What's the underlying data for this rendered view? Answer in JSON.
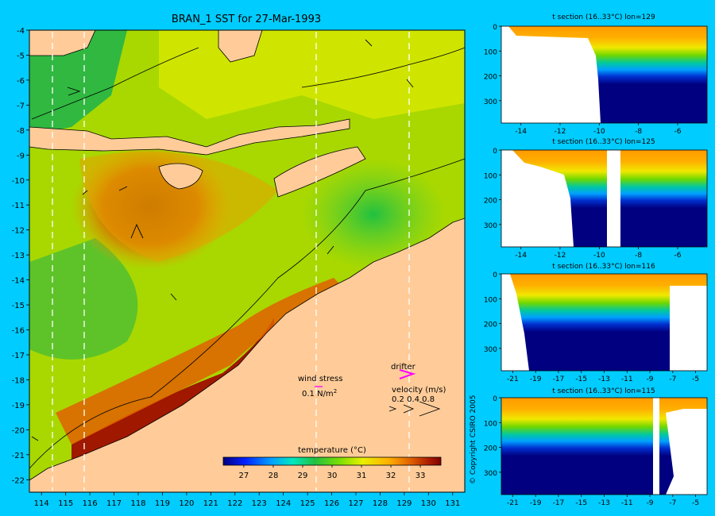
{
  "main_map": {
    "title": "BRAN_1 SST for 27-Mar-1993",
    "x_ticks": [
      "114",
      "115",
      "116",
      "117",
      "118",
      "119",
      "120",
      "121",
      "122",
      "123",
      "124",
      "125",
      "126",
      "127",
      "128",
      "129",
      "130",
      "131"
    ],
    "y_ticks": [
      "-4",
      "-5",
      "-6",
      "-7",
      "-8",
      "-9",
      "-10",
      "-11",
      "-12",
      "-13",
      "-14",
      "-15",
      "-16",
      "-17",
      "-18",
      "-19",
      "-20",
      "-21",
      "-22"
    ],
    "section_lons": [
      114.5,
      115.8,
      125.4,
      129.2
    ],
    "wind_legend": {
      "label": "wind stress",
      "scale": "0.1 N/m",
      "superscript": "2"
    },
    "drifter_label": "drifter",
    "velocity": {
      "label": "velocity (m/s)",
      "scale": "0.2 0.4 0.8"
    },
    "colorbar": {
      "label": "temperature (°C)",
      "ticks": [
        "27",
        "28",
        "29",
        "30",
        "31",
        "32",
        "33"
      ],
      "range": [
        26.3,
        33.7
      ],
      "colors": [
        "#000080",
        "#0020ff",
        "#00a0ff",
        "#00e8c0",
        "#20c040",
        "#80e000",
        "#e8f000",
        "#ffb000",
        "#e06000",
        "#b02000",
        "#800000"
      ]
    }
  },
  "sections": [
    {
      "title": "t section (16..33°C) lon=129",
      "x_ticks": [
        "-14",
        "-12",
        "-10",
        "-8",
        "-6"
      ],
      "x_range": [
        -15,
        -4.5
      ],
      "y_ticks": [
        "0",
        "100",
        "200",
        "300"
      ],
      "y_range": [
        0,
        390
      ]
    },
    {
      "title": "t section (16..33°C) lon=125",
      "x_ticks": [
        "-14",
        "-12",
        "-10",
        "-8",
        "-6"
      ],
      "x_range": [
        -15,
        -4.5
      ],
      "y_ticks": [
        "0",
        "100",
        "200",
        "300"
      ],
      "y_range": [
        0,
        390
      ]
    },
    {
      "title": "t section (16..33°C) lon=116",
      "x_ticks": [
        "-21",
        "-19",
        "-17",
        "-15",
        "-13",
        "-11",
        "-9",
        "-7",
        "-5"
      ],
      "x_range": [
        -22,
        -4
      ],
      "y_ticks": [
        "0",
        "100",
        "200",
        "300"
      ],
      "y_range": [
        0,
        390
      ]
    },
    {
      "title": "t section (16..33°C) lon=115",
      "x_ticks": [
        "-21",
        "-19",
        "-17",
        "-15",
        "-13",
        "-11",
        "-9",
        "-7",
        "-5"
      ],
      "x_range": [
        -22,
        -4
      ],
      "y_ticks": [
        "0",
        "100",
        "200",
        "300"
      ],
      "y_range": [
        0,
        390
      ]
    }
  ],
  "copyright": "© Copyright CSIRO 2005",
  "chart_data": {
    "type": "heatmap",
    "title": "BRAN_1 SST for 27-Mar-1993",
    "xlim": [
      113.5,
      131.5
    ],
    "ylim": [
      -22.5,
      -4
    ],
    "colorbar_label": "temperature (°C)",
    "colorbar_range": [
      26.3,
      33.7
    ]
  }
}
